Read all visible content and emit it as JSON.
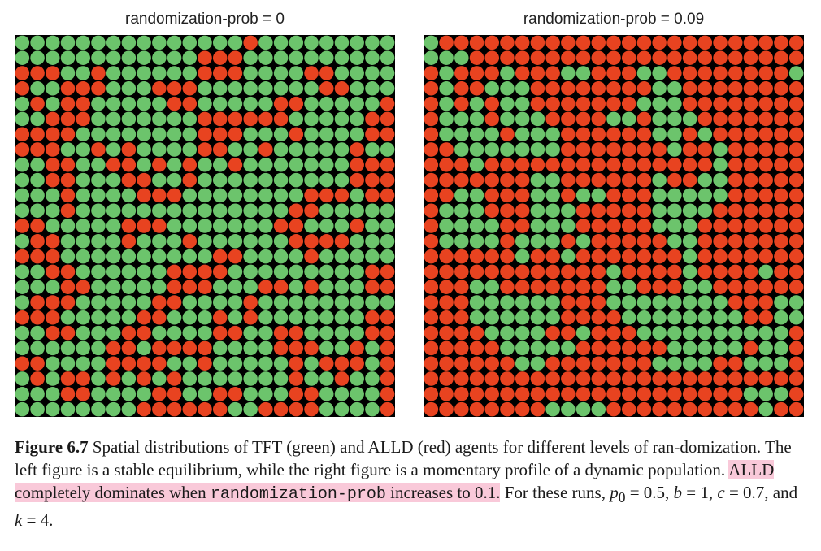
{
  "panels": [
    {
      "title": "randomization-prob = 0",
      "grid_rows": [
        "GGGGGGGGGGGGGGGRGGGGGGGGG",
        "GGGGGGGGGGGGRRRGGGGGGGGGG",
        "RRRGGRGGGGGGRRRGGGGRRGGGG",
        "RGGRRRGGGRRRGGGGGGGGRRGGG",
        "GRGRRGGGGGRRGGGGGRRGGGGGR",
        "GGRRRGGGGGGGRRRRRRGGGGGRR",
        "RRRRGGGGGGGGRRRGGGRGGGGRR",
        "RRRGGRGRGGGGRRGGRGGGGGRGG",
        "GGRRGGRRGRGRGGRGGGGGGGRRR",
        "GGRRGGGRRGGRGGGGGGGGGGRRR",
        "GGGRGGGGRRRGGGGGGGGRRRGRR",
        "GGGRGGGGGGGGGGGGGGRRGGGGG",
        "RRGGGGGRRRGGGGGGGRRGGGRGG",
        "GRRGGGGRGGGRGGGGGGRRRRGGG",
        "RRRGGGGGGGGGGRRGGGGRGGGGG",
        "GGRRGGGGGGRRRRGGGGGGGGGRR",
        "GGGRRGGGGGRRRGGGRRGRGGGRR",
        "GRRRGGGGGRRGGGGRGGGGGGGGG",
        "RRRGGGGGRRGGGRGRGGGGGGGRR",
        "GGRRGGGRRGGGGRRGGRRGGGGRR",
        "GGGGGGRRGRRRRGGGGRRRGGRGR",
        "RRGGGGRRRRGGRGGGGGRGRRRGR",
        "GRGRRGRGRGRGGGGGGGRGGRGGR",
        "GGGRRGGGGRRGGRRGGGRRGGGGR",
        "GGGGGGGGRRRRRRGGRRRRGGGGR"
      ]
    },
    {
      "title": "randomization-prob = 0.09",
      "grid_rows": [
        "GRRRRRRRRRRRRRRRRRRRRRRRR",
        "GGGRRRRRRRRRRRRRRRRRRRRRR",
        "RGRRRGRRRGGRRRGGRRRRRRRRG",
        "RGRRGGGRRRRRRRRGGRRRRRRRR",
        "RGRGRGGRRRRRRRGGGRRRRRRRR",
        "RGGGRGGGRRRRGGRGGGRRRRRRR",
        "RGGGGRGGGRRRRRRGGRGRRRRRR",
        "RRGGGGGGGRRRRRRRGRRGRRRRR",
        "RRRGRRRRRRRRRRRRRRRGRRRRR",
        "RRRRRRRGGRRRRRRGRRGGRRRRR",
        "RRGGRRRGGRGGRRRGGGGGRRRRR",
        "RGGGRRRGGGRRRRRGGGGRRRRRR",
        "RGGGGRRGGGRRRRRGGGRRRRRRR",
        "RGGGGRGGGRGRRRRRGGRRRRRRR",
        "RRRRRRGRRGRRRRRRRGRRRRRRR",
        "RRRRRRRRRRRRGRRRRGRRRRGRR",
        "RRRGGRRRRRRRGGRRRGGRRRRRR",
        "RRRGGGGGGRRRGGGGGGGGRRRGG",
        "RRRGGGGGGRRRRGGGGGGGGRRGG",
        "RRRRGGGGRRGRRRGGGGGGGGGGR",
        "RRRRRGGGGGRRRRRRGGGGGRGGR",
        "RRRRRRGGRRRRRRRGGGGRRGGGR",
        "RRRRRRRRRRRRRRRRRRRRRRRRR",
        "RRRRRRRRRRRRRRRRRRRRRGGGR",
        "RRRRRRRRGGGGRRRRRRRRRRGRR"
      ]
    }
  ],
  "colors": {
    "tft_green": "#6cc46c",
    "alld_red": "#e84320",
    "background": "#000000"
  },
  "caption": {
    "label": "Figure 6.7",
    "text1": "Spatial distributions of TFT (green) and ALLD (red) agents for different levels of ran-domization. The left figure is a stable equilibrium, while the right figure is a momentary profile of a dynamic population.",
    "hl_text1": "ALLD completely dominates when",
    "hl_code": "randomization-prob",
    "hl_text2": "increases to 0.1.",
    "text2": "For these runs,",
    "p_var": "p",
    "p_sub": "0",
    "p_eq": "= 0.5,",
    "b_var": "b",
    "b_eq": "= 1,",
    "c_var": "c",
    "c_eq": "= 0.7, and",
    "k_var": "k",
    "k_eq": "= 4."
  }
}
